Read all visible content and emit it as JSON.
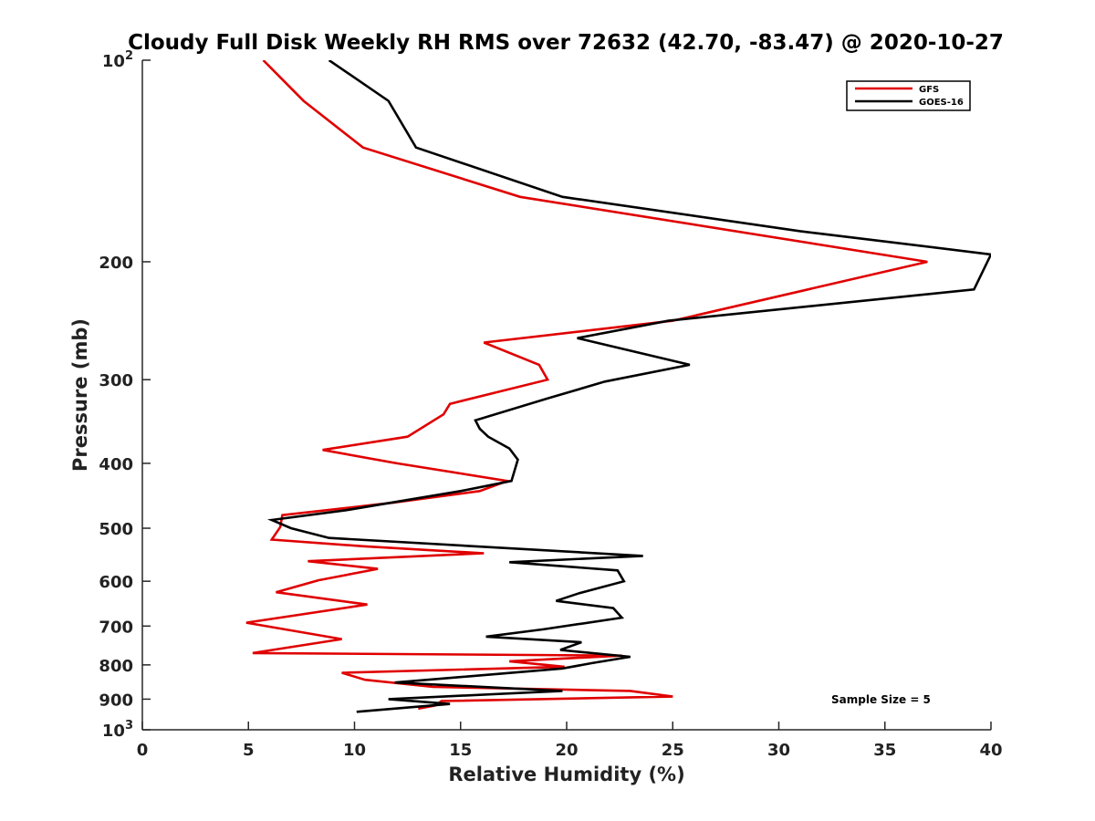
{
  "chart_data": {
    "type": "line",
    "title": "Cloudy Full Disk Weekly RH RMS over 72632 (42.70, -83.47) @ 2020-10-27",
    "xlabel": "Relative Humidity (%)",
    "ylabel": "Pressure (mb)",
    "xlim": [
      0,
      40
    ],
    "ylim": [
      100,
      1000
    ],
    "yscale": "log",
    "y_reversed": true,
    "grid": false,
    "legend_position": "top-right",
    "x_ticks": [
      "0",
      "5",
      "10",
      "15",
      "20",
      "25",
      "30",
      "35",
      "40"
    ],
    "y_ticks": [
      {
        "value": 100,
        "base": "10",
        "exp": "2"
      },
      {
        "value": 200,
        "label": "200"
      },
      {
        "value": 300,
        "label": "300"
      },
      {
        "value": 400,
        "label": "400"
      },
      {
        "value": 500,
        "label": "500"
      },
      {
        "value": 600,
        "label": "600"
      },
      {
        "value": 700,
        "label": "700"
      },
      {
        "value": 800,
        "label": "800"
      },
      {
        "value": 900,
        "label": "900"
      },
      {
        "value": 1000,
        "base": "10",
        "exp": "3"
      }
    ],
    "series": [
      {
        "name": "GFS",
        "color": "#e00000",
        "points": [
          [
            5.7,
            100
          ],
          [
            7.6,
            115
          ],
          [
            10.4,
            135
          ],
          [
            17.8,
            160
          ],
          [
            37.0,
            200
          ],
          [
            25.0,
            245
          ],
          [
            16.1,
            264
          ],
          [
            18.7,
            285
          ],
          [
            19.1,
            300
          ],
          [
            14.5,
            326
          ],
          [
            14.2,
            338
          ],
          [
            12.5,
            365
          ],
          [
            8.5,
            382
          ],
          [
            12.0,
            400
          ],
          [
            17.2,
            425
          ],
          [
            15.9,
            440
          ],
          [
            11.8,
            458
          ],
          [
            6.6,
            478
          ],
          [
            6.5,
            498
          ],
          [
            6.1,
            520
          ],
          [
            10.4,
            532
          ],
          [
            16.1,
            545
          ],
          [
            7.8,
            560
          ],
          [
            11.1,
            575
          ],
          [
            8.3,
            598
          ],
          [
            6.3,
            623
          ],
          [
            10.6,
            650
          ],
          [
            4.9,
            692
          ],
          [
            9.4,
            732
          ],
          [
            5.2,
            768
          ],
          [
            22.6,
            775
          ],
          [
            17.3,
            790
          ],
          [
            19.9,
            805
          ],
          [
            9.4,
            822
          ],
          [
            10.5,
            842
          ],
          [
            13.7,
            863
          ],
          [
            23.0,
            875
          ],
          [
            25.0,
            892
          ],
          [
            14.1,
            906
          ],
          [
            13.8,
            920
          ],
          [
            13.0,
            930
          ]
        ]
      },
      {
        "name": "GOES-16",
        "color": "#000000",
        "points": [
          [
            8.8,
            100
          ],
          [
            11.6,
            115
          ],
          [
            12.9,
            135
          ],
          [
            19.8,
            160
          ],
          [
            31.0,
            180
          ],
          [
            40.0,
            195
          ],
          [
            39.2,
            220
          ],
          [
            24.8,
            245
          ],
          [
            20.5,
            260
          ],
          [
            25.8,
            285
          ],
          [
            21.8,
            302
          ],
          [
            19.1,
            320
          ],
          [
            15.7,
            345
          ],
          [
            15.9,
            355
          ],
          [
            16.3,
            365
          ],
          [
            17.3,
            380
          ],
          [
            17.7,
            395
          ],
          [
            17.4,
            425
          ],
          [
            15.0,
            440
          ],
          [
            9.6,
            470
          ],
          [
            6.1,
            486
          ],
          [
            7.0,
            500
          ],
          [
            8.8,
            517
          ],
          [
            23.6,
            550
          ],
          [
            17.3,
            562
          ],
          [
            22.4,
            578
          ],
          [
            22.7,
            600
          ],
          [
            20.6,
            625
          ],
          [
            19.5,
            642
          ],
          [
            22.2,
            658
          ],
          [
            22.6,
            680
          ],
          [
            18.9,
            708
          ],
          [
            16.2,
            726
          ],
          [
            20.7,
            740
          ],
          [
            19.7,
            760
          ],
          [
            23.0,
            778
          ],
          [
            21.2,
            795
          ],
          [
            19.8,
            810
          ],
          [
            11.9,
            850
          ],
          [
            19.8,
            875
          ],
          [
            11.6,
            900
          ],
          [
            14.5,
            915
          ],
          [
            10.1,
            940
          ]
        ]
      }
    ],
    "legend": [
      "GFS",
      "GOES-16"
    ],
    "annotations": [
      {
        "text": "Sample Size = 5",
        "position": "bottom-right"
      }
    ]
  }
}
